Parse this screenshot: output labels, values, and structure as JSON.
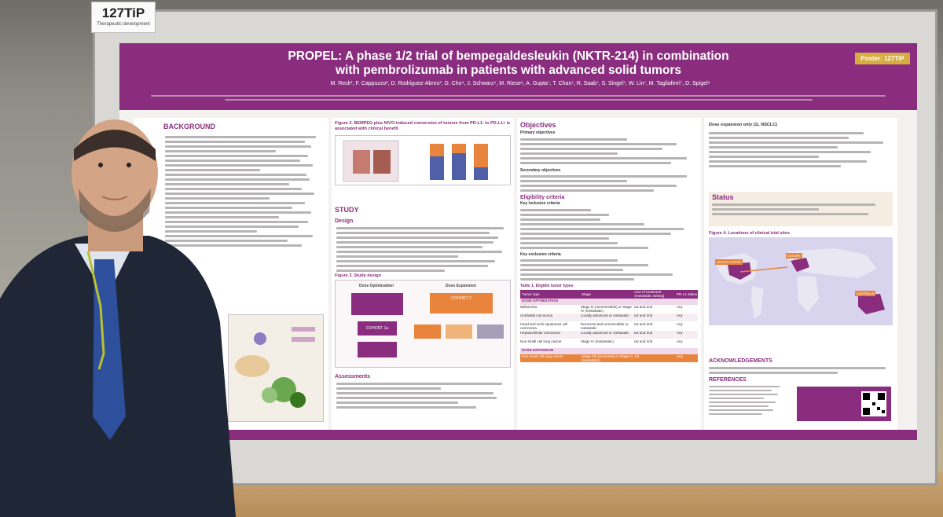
{
  "board_label": {
    "code": "127TiP",
    "subtitle": "Therapeutic development"
  },
  "poster": {
    "title_line1": "PROPEL: A phase 1/2 trial of bempegaldesleukin (NKTR-214) in combination",
    "title_line2": "with pembrolizumab in patients with advanced solid tumors",
    "badge": "Poster: 127TiP",
    "authors": "M. Reck¹, F. Cappuzzo², D. Rodriguez-Abreu³, D. Cho⁴, J. Schwarz⁵, M. Riese⁶, A. Gupta⁷, T. Chan⁷, R. Saab⁷, S. Singel⁷, W. Lin⁷, M. Tagliaferri⁷, D. Spigel⁸",
    "sections": {
      "background": "BACKGROUND",
      "figure2": "Figure 2. BEMPEG plus NIVO-induced conversion of tumors from PD-L1- to PD-L1+ is associated with clinical benefit",
      "study": "STUDY",
      "design": "Design",
      "figure3": "Figure 3. Study design",
      "assessments": "Assessments",
      "objectives": "Objectives",
      "primary_objectives": "Primary objectives",
      "secondary_objectives": "Secondary objectives",
      "eligibility": "Eligibility criteria",
      "inclusion": "Key inclusion criteria",
      "exclusion": "Key exclusion criteria",
      "table1": "Table 1. Eligible tumor types",
      "dose_expansion": "Dose expansion only (1L NSCLC)",
      "status": "Status",
      "figure4": "Figure 4. Locations of clinical trial sites",
      "acknowledgements": "ACKNOWLEDGEMENTS",
      "references": "REFERENCES"
    },
    "table": {
      "headers": [
        "Tumor type",
        "Stage",
        "Line of treatment (metastatic setting)",
        "PD-L1 status"
      ],
      "group1": "DOSE OPTIMIZATION",
      "rows": [
        [
          "Melanoma",
          "Stage III (unresectable) or Stage IV (metastatic)",
          "1st and 2nd",
          "Any"
        ],
        [
          "Urothelial carcinoma",
          "Locally advanced or metastatic",
          "1st and 2nd",
          "Any"
        ],
        [
          "Head and neck squamous cell carcinoma",
          "Recurrent and unresectable or metastatic",
          "1st and 2nd",
          "Any"
        ],
        [
          "Hepatocellular carcinoma",
          "Locally advanced or metastatic",
          "1st and 2nd",
          "Any"
        ],
        [
          "Non-small cell lung cancer",
          "Stage IV (metastatic)",
          "1st and 2nd",
          "Any"
        ]
      ],
      "group2": "DOSE EXPANSION",
      "expansion_row": [
        "Non-small cell lung cancer",
        "Stage IIIb (recurrent) or Stage IV (metastatic)",
        "1st",
        "Any"
      ]
    },
    "map_labels": [
      "UNITED STATES",
      "EUROPE",
      "AUSTRALIA"
    ],
    "study_design": {
      "left_head": "Dose Optimization",
      "right_head": "Dose Expansion",
      "cohort1": "COHORT 1a",
      "cohort2": "COHORT 2"
    }
  },
  "colors": {
    "header": "#8a2d7e",
    "badge": "#d6ad3f",
    "accent_orange": "#e8843c"
  }
}
